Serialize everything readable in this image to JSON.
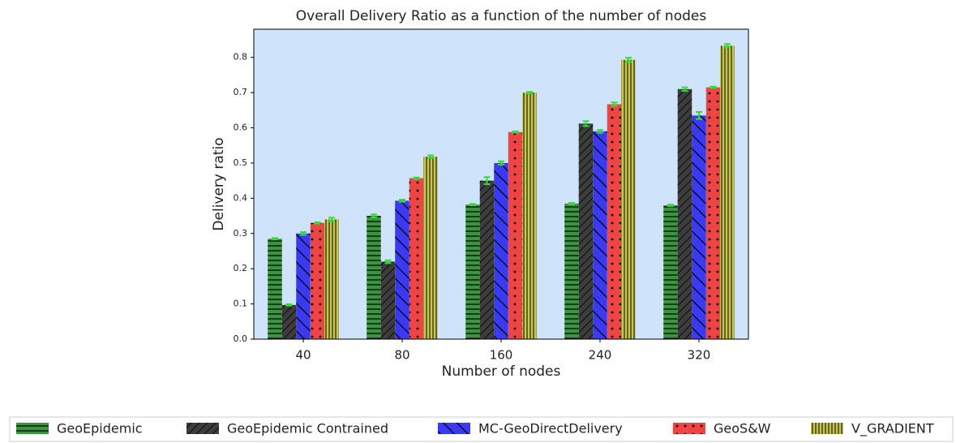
{
  "chart_data": {
    "type": "bar",
    "title": "Overall Delivery Ratio as a function of the number of nodes",
    "x_label": "Number of nodes",
    "y_label": "Delivery ratio",
    "categories": [
      "40",
      "80",
      "160",
      "240",
      "320"
    ],
    "series": [
      {
        "name": "GeoEpidemic",
        "color": "#3a9440",
        "values": [
          0.285,
          0.35,
          0.382,
          0.385,
          0.38
        ],
        "errors": [
          0.002,
          0.004,
          0.002,
          0.002,
          0.002
        ]
      },
      {
        "name": "GeoEpidemic Contrained",
        "color": "#3d3d3d",
        "values": [
          0.097,
          0.22,
          0.45,
          0.612,
          0.71
        ],
        "errors": [
          0.002,
          0.004,
          0.01,
          0.007,
          0.005
        ]
      },
      {
        "name": "MC-GeoDirectDelivery",
        "color": "#3a3af2",
        "values": [
          0.3,
          0.393,
          0.5,
          0.59,
          0.635
        ],
        "errors": [
          0.004,
          0.003,
          0.005,
          0.004,
          0.01
        ]
      },
      {
        "name": "GeoS&W",
        "color": "#ee4444",
        "values": [
          0.33,
          0.457,
          0.588,
          0.667,
          0.715
        ],
        "errors": [
          0.002,
          0.002,
          0.002,
          0.005,
          0.002
        ]
      },
      {
        "name": "V_GRADIENT",
        "color": "#c9c64c",
        "values": [
          0.34,
          0.518,
          0.7,
          0.793,
          0.833
        ],
        "errors": [
          0.005,
          0.004,
          0.002,
          0.006,
          0.005
        ]
      }
    ],
    "ylim": [
      0,
      0.88
    ],
    "yticks": [
      {
        "value": 0,
        "label": "0.0"
      },
      0.1,
      0.2,
      0.3,
      0.4,
      0.5,
      0.6,
      0.7,
      0.8
    ],
    "error_color": "#33dd33",
    "background": "#cfe4fb",
    "legend": "bottom"
  }
}
